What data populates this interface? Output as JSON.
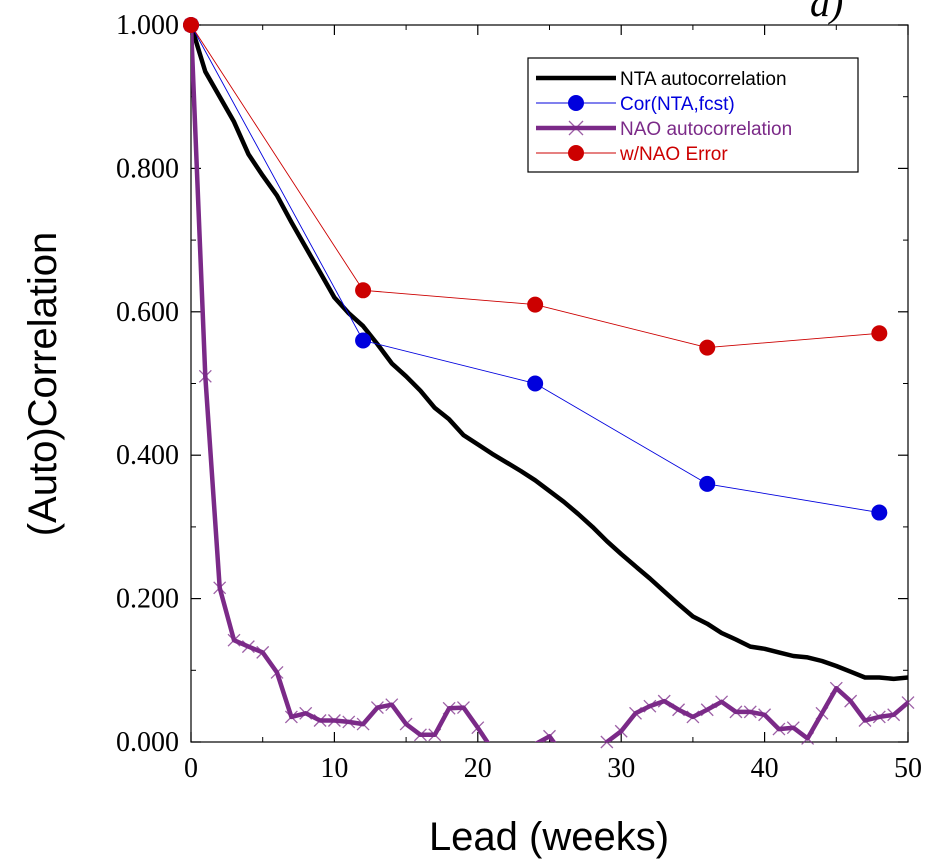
{
  "chart_data": {
    "type": "line",
    "corner_mark": "a)",
    "xlabel": "Lead (weeks)",
    "ylabel": "(Auto)Correlation",
    "xlim": [
      0,
      50
    ],
    "ylim": [
      0,
      1
    ],
    "x_ticks": [
      0,
      10,
      20,
      30,
      40,
      50
    ],
    "x_tick_labels": [
      "0",
      "10",
      "20",
      "30",
      "40",
      "50"
    ],
    "y_ticks": [
      0,
      0.2,
      0.4,
      0.6,
      0.8,
      1.0
    ],
    "y_tick_labels": [
      "0.000",
      "0.200",
      "0.400",
      "0.600",
      "0.800",
      "1.000"
    ],
    "legend_position": "top-right",
    "grid": false,
    "series": [
      {
        "name": "NTA autocorrelation",
        "color": "#000000",
        "style": "thick-line",
        "x": [
          0,
          1,
          2,
          3,
          4,
          5,
          6,
          7,
          8,
          9,
          10,
          11,
          12,
          13,
          14,
          15,
          16,
          17,
          18,
          19,
          20,
          21,
          22,
          23,
          24,
          25,
          26,
          27,
          28,
          29,
          30,
          31,
          32,
          33,
          34,
          35,
          36,
          37,
          38,
          39,
          40,
          41,
          42,
          43,
          44,
          45,
          46,
          47,
          48,
          49,
          50
        ],
        "y": [
          1.0,
          0.935,
          0.9,
          0.865,
          0.82,
          0.79,
          0.762,
          0.725,
          0.69,
          0.655,
          0.62,
          0.598,
          0.58,
          0.555,
          0.528,
          0.51,
          0.49,
          0.466,
          0.45,
          0.428,
          0.415,
          0.402,
          0.39,
          0.378,
          0.365,
          0.35,
          0.335,
          0.318,
          0.3,
          0.28,
          0.262,
          0.245,
          0.228,
          0.21,
          0.192,
          0.175,
          0.165,
          0.152,
          0.143,
          0.133,
          0.13,
          0.125,
          0.12,
          0.118,
          0.113,
          0.106,
          0.098,
          0.09,
          0.09,
          0.088,
          0.09
        ]
      },
      {
        "name": "Cor(NTA,fcst)",
        "color": "#0000dd",
        "style": "thin-line-circle",
        "x": [
          0,
          12,
          24,
          36,
          48
        ],
        "y": [
          1.0,
          0.56,
          0.5,
          0.36,
          0.32
        ]
      },
      {
        "name": "NAO autocorrelation",
        "color": "#7b2a88",
        "style": "thick-line-cross",
        "x": [
          0,
          1,
          2,
          3,
          4,
          5,
          6,
          7,
          8,
          9,
          10,
          11,
          12,
          13,
          14,
          15,
          16,
          17,
          18,
          19,
          20,
          21,
          22,
          23,
          24,
          25,
          26,
          27,
          28,
          29,
          30,
          31,
          32,
          33,
          34,
          35,
          36,
          37,
          38,
          39,
          40,
          41,
          42,
          43,
          44,
          45,
          46,
          47,
          48,
          49,
          50
        ],
        "y": [
          1.0,
          0.51,
          0.215,
          0.142,
          0.133,
          0.125,
          0.097,
          0.035,
          0.04,
          0.03,
          0.03,
          0.028,
          0.025,
          0.048,
          0.052,
          0.025,
          0.01,
          0.01,
          0.047,
          0.048,
          0.02,
          -0.01,
          -0.03,
          -0.02,
          -0.003,
          0.008,
          -0.02,
          -0.03,
          -0.02,
          0.0,
          0.015,
          0.04,
          0.05,
          0.057,
          0.045,
          0.035,
          0.045,
          0.056,
          0.042,
          0.042,
          0.038,
          0.018,
          0.02,
          0.005,
          0.04,
          0.075,
          0.057,
          0.03,
          0.035,
          0.038,
          0.055
        ]
      },
      {
        "name": "w/NAO Error",
        "color": "#cc0000",
        "style": "thin-line-circle",
        "x": [
          0,
          12,
          24,
          36,
          48
        ],
        "y": [
          1.0,
          0.63,
          0.61,
          0.55,
          0.57
        ]
      }
    ]
  }
}
